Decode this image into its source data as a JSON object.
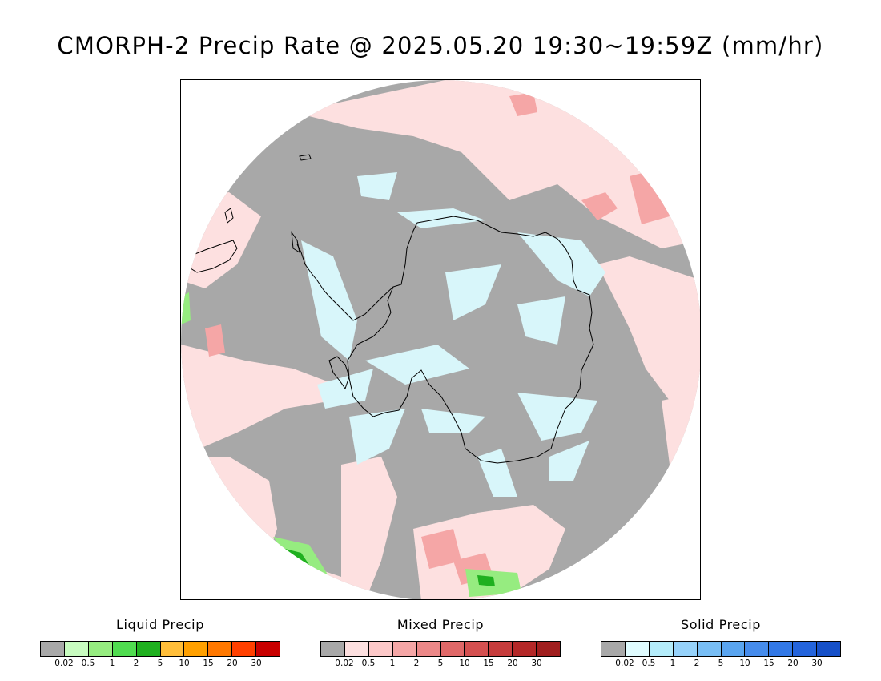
{
  "title": "CMORPH-2 Precip Rate @ 2025.05.20 19:30~19:59Z (mm/hr)",
  "colors": {
    "no_precip": "#a8a8a8",
    "mixed_light": "#fde0e0",
    "solid_light": "#d8f6fa",
    "liquid_light": "#96ec80",
    "coastline": "#000000"
  },
  "legends": [
    {
      "title": "Liquid Precip",
      "colors": [
        "#a8a8a8",
        "#c8fcc0",
        "#96ec80",
        "#50dc50",
        "#1fb01f",
        "#ffbe3a",
        "#ffa000",
        "#ff7800",
        "#ff4000",
        "#c80000"
      ],
      "ticks": [
        "0.02",
        "0.5",
        "1",
        "2",
        "5",
        "10",
        "15",
        "20",
        "30"
      ]
    },
    {
      "title": "Mixed Precip",
      "colors": [
        "#a8a8a8",
        "#fde0e0",
        "#fcc8c8",
        "#f5a6a6",
        "#ec8888",
        "#e06868",
        "#d45050",
        "#c63c3c",
        "#b42828",
        "#a01e1e"
      ],
      "ticks": [
        "0.02",
        "0.5",
        "1",
        "2",
        "5",
        "10",
        "15",
        "20",
        "30"
      ]
    },
    {
      "title": "Solid Precip",
      "colors": [
        "#a8a8a8",
        "#e0fcff",
        "#b4ecfa",
        "#96d2fa",
        "#78bef5",
        "#5aa5f0",
        "#468cec",
        "#3278e6",
        "#2464dc",
        "#1650c8"
      ],
      "ticks": [
        "0.02",
        "0.5",
        "1",
        "2",
        "5",
        "10",
        "15",
        "20",
        "30"
      ]
    }
  ]
}
